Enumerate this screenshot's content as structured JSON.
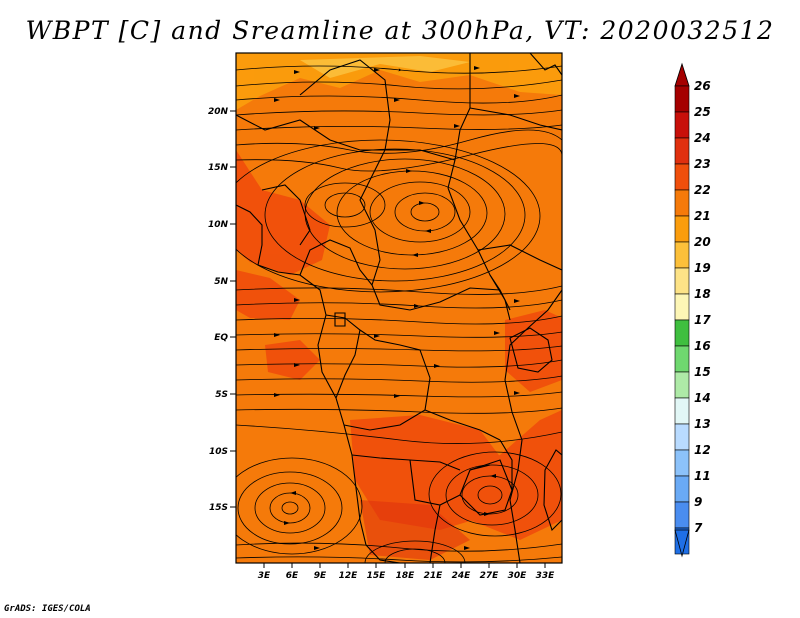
{
  "title": "WBPT [C] and Sreamline at 300hPa, VT: 2020032512",
  "credit": "GrADS: IGES/COLA",
  "lat_labels": [
    "20N",
    "15N",
    "10N",
    "5N",
    "EQ",
    "5S",
    "10S",
    "15S"
  ],
  "lon_labels": [
    "3E",
    "6E",
    "9E",
    "12E",
    "15E",
    "18E",
    "21E",
    "24E",
    "27E",
    "30E",
    "33E"
  ],
  "colorbar": {
    "levels": [
      "26",
      "25",
      "24",
      "23",
      "22",
      "21",
      "20",
      "19",
      "18",
      "17",
      "16",
      "15",
      "14",
      "13",
      "12",
      "11",
      "9",
      "7"
    ],
    "colors": [
      "#a50000",
      "#c8100a",
      "#e0300f",
      "#f04f0c",
      "#f57a0a",
      "#fb9d0d",
      "#fcc03a",
      "#fde387",
      "#fdf6b6",
      "#3fbf3f",
      "#6fd86f",
      "#aeeaa7",
      "#e2f7f6",
      "#b9dbff",
      "#8cc2fa",
      "#6aaaf5",
      "#4a8df0",
      "#1f6fe6"
    ],
    "top_arrow_color": "#a50000",
    "bottom_arrow_color": "#1f6fe6"
  }
}
